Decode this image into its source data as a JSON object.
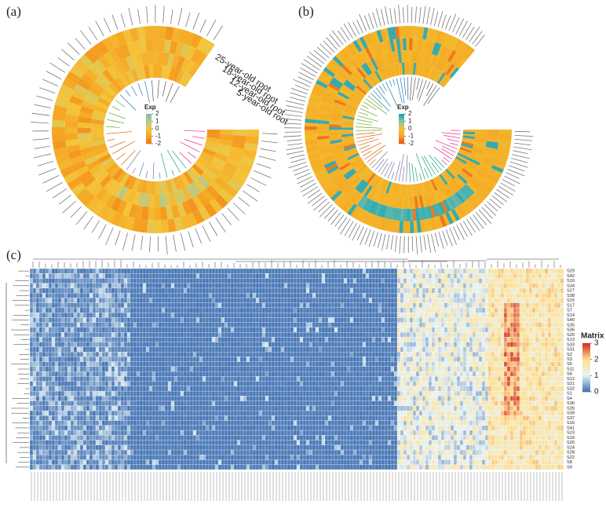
{
  "panels": {
    "a": {
      "label": "(a)",
      "legend_title": "Exp",
      "legend_ticks": [
        2,
        1,
        0,
        -1,
        -2
      ],
      "tracks": [
        "25-year-old root",
        "18-year-old root",
        "12-year-old root",
        "5-year-old root"
      ]
    },
    "b": {
      "label": "(b)",
      "legend_title": "Exp",
      "legend_ticks": [
        2,
        1,
        0,
        -1,
        -2
      ]
    },
    "c": {
      "label": "(c)",
      "legend_title": "Matrix",
      "legend_ticks": [
        3,
        2,
        1,
        0
      ],
      "rows": [
        "S29",
        "S42",
        "S10",
        "S34",
        "S27",
        "S38",
        "S15",
        "S17",
        "S7",
        "S14",
        "S40",
        "S35",
        "S36",
        "S25",
        "S13",
        "S33",
        "S31",
        "S2",
        "S3",
        "S5",
        "S11",
        "S6",
        "S12",
        "S21",
        "S32",
        "S1",
        "S4",
        "S30",
        "S26",
        "S39",
        "S37",
        "S16",
        "S41",
        "S23",
        "S19",
        "S20",
        "S24",
        "S28",
        "S22",
        "S8",
        "S9"
      ]
    }
  }
}
